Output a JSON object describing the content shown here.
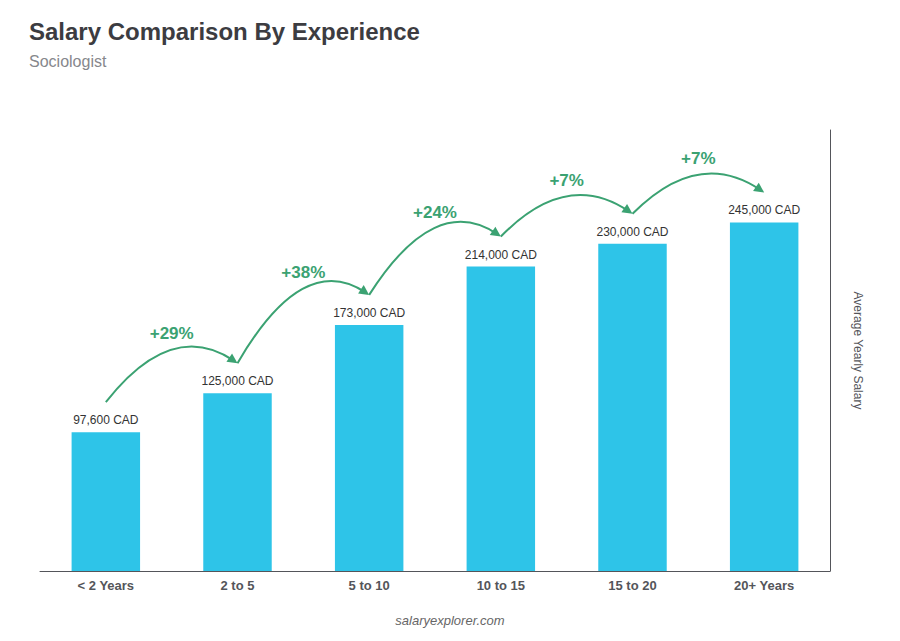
{
  "chart_data": {
    "type": "bar",
    "title": "Salary Comparison By Experience",
    "subtitle": "Sociologist",
    "ylabel": "Average Yearly Salary",
    "categories": [
      "< 2 Years",
      "2 to 5",
      "5 to 10",
      "10 to 15",
      "15 to 20",
      "20+ Years"
    ],
    "values": [
      97600,
      125000,
      173000,
      214000,
      230000,
      245000
    ],
    "value_labels": [
      "97,600 CAD",
      "125,000 CAD",
      "173,000 CAD",
      "214,000 CAD",
      "230,000 CAD",
      "245,000 CAD"
    ],
    "data_labels": true,
    "annotations": [
      "+29%",
      "+38%",
      "+24%",
      "+7%",
      "+7%"
    ],
    "footer": "salaryexplorer.com",
    "color": "#2ec4e8",
    "ylim": [
      0,
      310000
    ],
    "tick_labels": "x",
    "grid": false
  }
}
